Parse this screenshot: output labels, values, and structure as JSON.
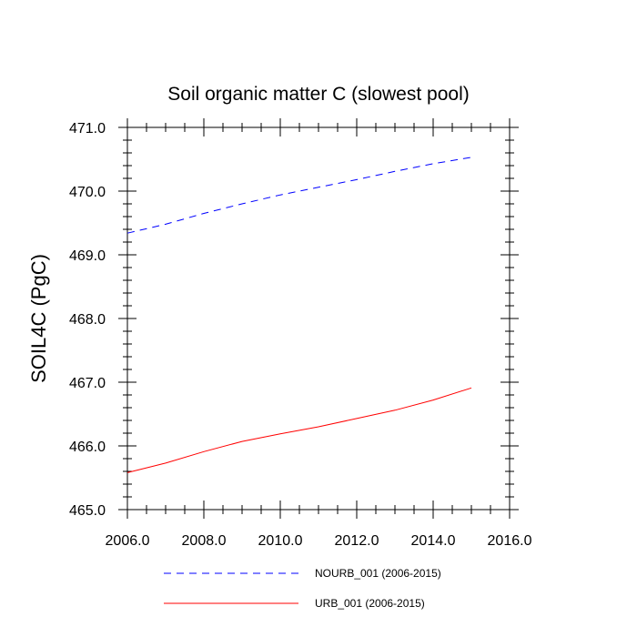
{
  "chart_data": {
    "type": "line",
    "title": "Soil organic matter C (slowest pool)",
    "xlabel": "",
    "ylabel": "SOIL4C  (PgC)",
    "xlim": [
      2006.0,
      2016.0
    ],
    "ylim": [
      465.0,
      471.0
    ],
    "xticks": [
      "2006.0",
      "2008.0",
      "2010.0",
      "2012.0",
      "2014.0",
      "2016.0"
    ],
    "yticks": [
      "465.0",
      "466.0",
      "467.0",
      "468.0",
      "469.0",
      "470.0",
      "471.0"
    ],
    "grid": false,
    "legend_position": "bottom",
    "series": [
      {
        "name": "NOURB_001 (2006-2015)",
        "color": "#0000ff",
        "dash": "dashed",
        "x": [
          2006,
          2007,
          2008,
          2009,
          2010,
          2011,
          2012,
          2013,
          2014,
          2015
        ],
        "values": [
          469.34,
          469.48,
          469.65,
          469.8,
          469.94,
          470.06,
          470.18,
          470.31,
          470.43,
          470.53
        ]
      },
      {
        "name": "URB_001 (2006-2015)",
        "color": "#ff0000",
        "dash": "solid",
        "x": [
          2006,
          2007,
          2008,
          2009,
          2010,
          2011,
          2012,
          2013,
          2014,
          2015
        ],
        "values": [
          465.58,
          465.73,
          465.91,
          466.07,
          466.19,
          466.3,
          466.43,
          466.56,
          466.72,
          466.91
        ]
      }
    ]
  }
}
